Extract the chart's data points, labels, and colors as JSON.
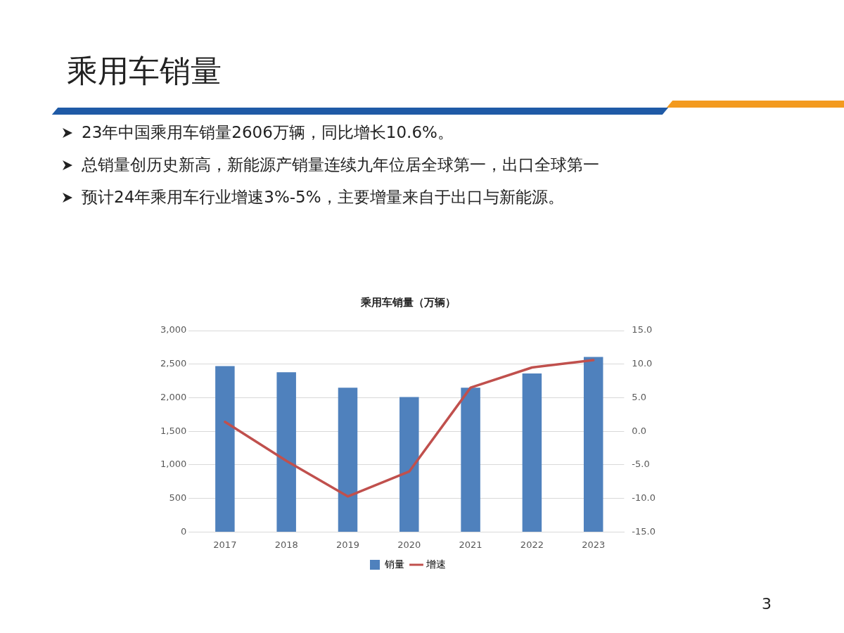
{
  "chart_data": {
    "type": "bar",
    "title": "乘用车销量",
    "subtitle": "乘用车销量（万辆）",
    "annotations": [
      "23年中国乘用车销量2606万辆，同比增长10.6%。",
      "总销量创历史新高，新能源产销量连续九年位居全球第一，出口全球第一",
      "预计24年乘用车行业增速3%-5%，主要增量来自于出口与新能源。",
      "3"
    ],
    "categories": [
      "2017",
      "2018",
      "2019",
      "2020",
      "2021",
      "2022",
      "2023"
    ],
    "series": [
      {
        "name": "销量",
        "color": "#4f81bd",
        "values": [
          2470,
          2380,
          2150,
          2010,
          2150,
          2360,
          2606
        ]
      },
      {
        "name": "增速",
        "type": "line",
        "axis": "y2",
        "color": "#c0504d",
        "values": [
          1.4,
          -4.4,
          -9.7,
          -6.0,
          6.5,
          9.5,
          10.6
        ]
      }
    ],
    "ylim": [
      0,
      3000
    ],
    "yticks": [
      {
        "value": 0,
        "label": "0"
      },
      {
        "value": 500,
        "label": "500"
      },
      {
        "value": 1000,
        "label": "1,000"
      },
      {
        "value": 1500,
        "label": "1,500"
      },
      {
        "value": 2000,
        "label": "2,000"
      },
      {
        "value": 2500,
        "label": "2,500"
      },
      {
        "value": 3000,
        "label": "3,000"
      }
    ],
    "y2lim": [
      -15,
      15
    ],
    "y2ticks": [
      {
        "value": -15,
        "label": "-15.0"
      },
      {
        "value": -10,
        "label": "-10.0"
      },
      {
        "value": -5,
        "label": "-5.0"
      },
      {
        "value": 0,
        "label": "0.0"
      },
      {
        "value": 5,
        "label": "5.0"
      },
      {
        "value": 10,
        "label": "10.0"
      },
      {
        "value": 15,
        "label": "15.0"
      }
    ],
    "grid": "y",
    "legend": "bottom",
    "marker": "none"
  }
}
